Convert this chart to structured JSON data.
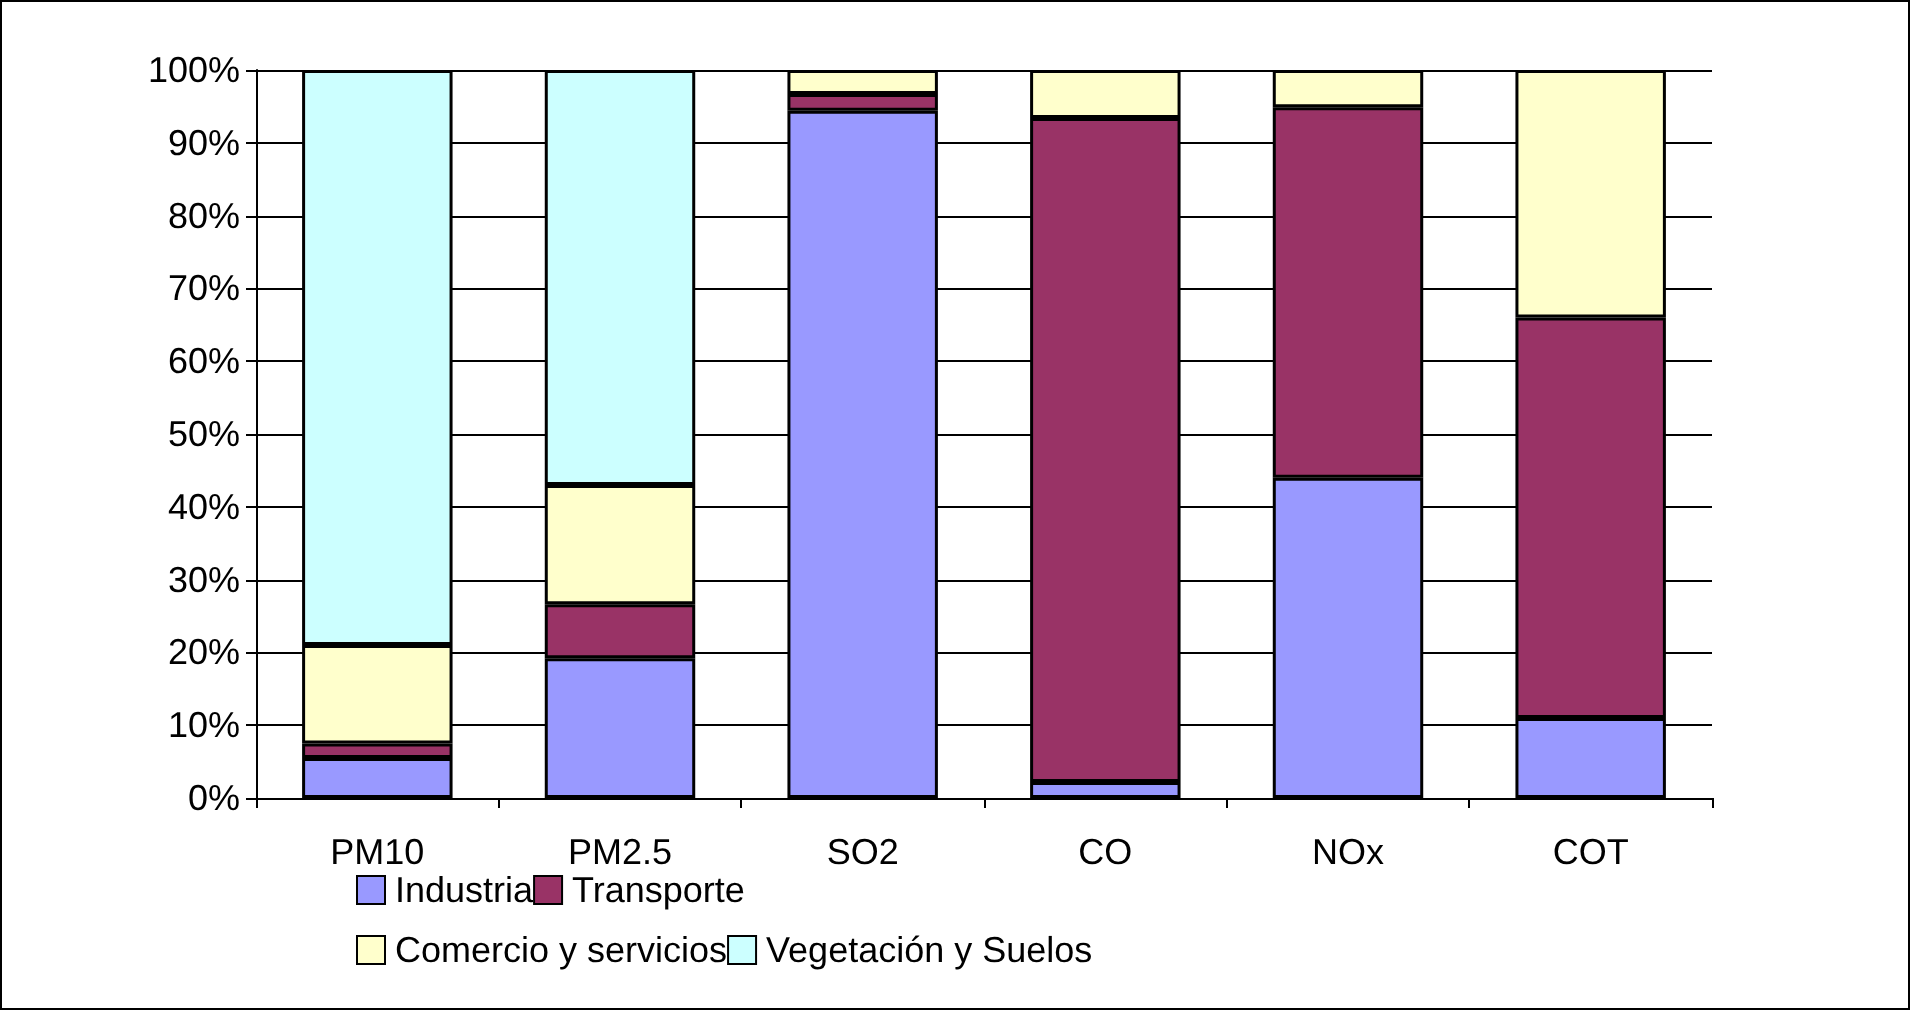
{
  "chart_data": {
    "type": "bar",
    "stacked": true,
    "categories": [
      "PM10",
      "PM2.5",
      "SO2",
      "CO",
      "NOx",
      "COT"
    ],
    "series": [
      {
        "name": "Industria",
        "color": "#9999ff",
        "values": [
          5.5,
          19.2,
          94.4,
          2.2,
          44,
          11
        ]
      },
      {
        "name": "Transporte",
        "color": "#993366",
        "values": [
          2,
          7.4,
          2.3,
          91.2,
          50.9,
          55
        ]
      },
      {
        "name": "Comercio y servicios",
        "color": "#ffffcc",
        "values": [
          13.5,
          16.4,
          3.3,
          6.6,
          5.1,
          34
        ]
      },
      {
        "name": "Vegetación y Suelos",
        "color": "#ccffff",
        "values": [
          79,
          57,
          null,
          null,
          null,
          null
        ]
      }
    ],
    "ylim": [
      0,
      100
    ],
    "yticks": [
      {
        "value": 0,
        "label": "0%"
      },
      {
        "value": 10,
        "label": "10%"
      },
      {
        "value": 20,
        "label": "20%"
      },
      {
        "value": 30,
        "label": "30%"
      },
      {
        "value": 40,
        "label": "40%"
      },
      {
        "value": 50,
        "label": "50%"
      },
      {
        "value": 60,
        "label": "60%"
      },
      {
        "value": 70,
        "label": "70%"
      },
      {
        "value": 80,
        "label": "80%"
      },
      {
        "value": 90,
        "label": "90%"
      },
      {
        "value": 100,
        "label": "100%"
      }
    ],
    "grid": "y",
    "legend": "bottom"
  }
}
